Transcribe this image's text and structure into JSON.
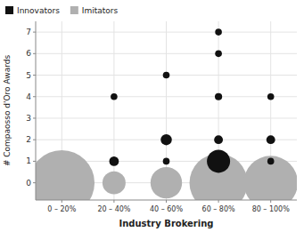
{
  "chart_data": {
    "type": "scatter",
    "xlabel": "Industry Brokering",
    "ylabel": "# Compaosso d'Oro Awards",
    "xlim": [
      -0.5,
      4.5
    ],
    "ylim": [
      -0.8,
      7.5
    ],
    "xticks": [
      {
        "value": 0,
        "label": "0 – 20%"
      },
      {
        "value": 1,
        "label": "20 – 40%"
      },
      {
        "value": 2,
        "label": "40 – 60%"
      },
      {
        "value": 3,
        "label": "60 – 80%"
      },
      {
        "value": 4,
        "label": "80 – 100%"
      }
    ],
    "yticks": [
      0,
      1,
      2,
      3,
      4,
      5,
      6,
      7
    ],
    "grid": true,
    "legend": "upper left",
    "series": [
      {
        "name": "Innovators",
        "color": "#111111",
        "x": [
          1,
          1,
          2,
          2,
          2,
          3,
          3,
          3,
          3,
          3,
          4,
          4,
          4
        ],
        "y": [
          1,
          4,
          1,
          2,
          5,
          1,
          2,
          4,
          6,
          7,
          1,
          2,
          4
        ],
        "size": [
          60,
          30,
          30,
          80,
          30,
          350,
          50,
          35,
          30,
          30,
          30,
          50,
          30
        ]
      },
      {
        "name": "Imitators",
        "color": "#b0b0b0",
        "x": [
          0,
          1,
          2,
          3,
          4
        ],
        "y": [
          0,
          0,
          0,
          0,
          0
        ],
        "size": [
          2800,
          350,
          650,
          2200,
          1900
        ]
      }
    ]
  }
}
